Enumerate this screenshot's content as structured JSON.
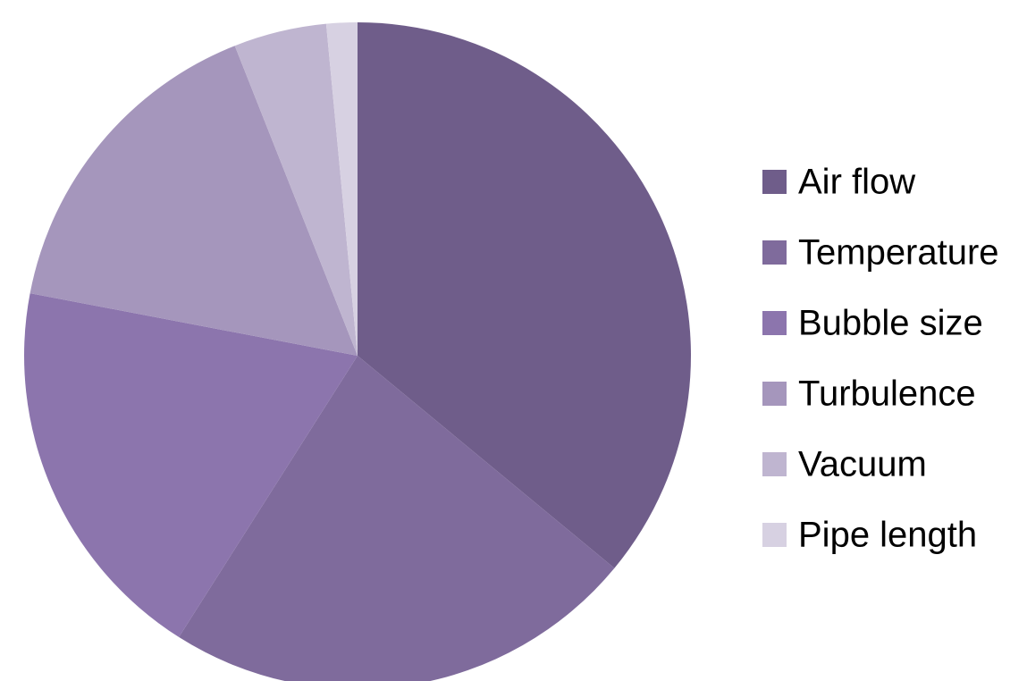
{
  "chart_data": {
    "type": "pie",
    "categories": [
      "Air flow",
      "Temperature",
      "Bubble size",
      "Turbulence",
      "Vacuum",
      "Pipe length"
    ],
    "values": [
      36,
      23,
      19,
      16,
      4.5,
      1.5
    ],
    "colors": [
      "#6f5d8a",
      "#7f6b9c",
      "#8c75ad",
      "#a596bc",
      "#bfb5d0",
      "#d7d1e2"
    ],
    "legend": "right"
  }
}
